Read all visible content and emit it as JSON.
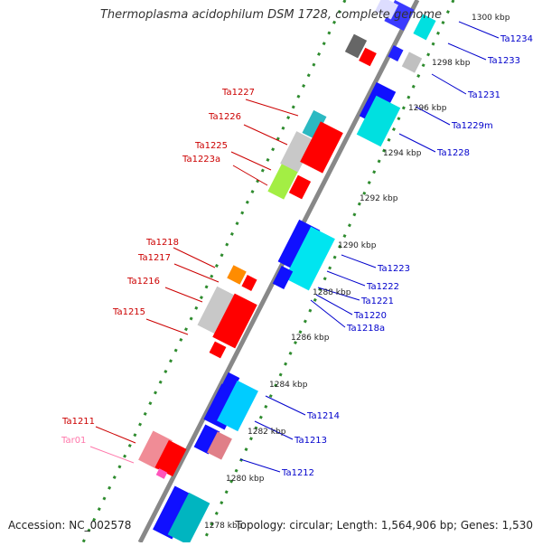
{
  "header": {
    "title": "Thermoplasma acidophilum DSM 1728, complete genome"
  },
  "footer": {
    "accession": "Accession: NC_002578",
    "summary": "Topology: circular; Length: 1,564,906 bp; Genes: 1,530"
  },
  "colors": {
    "backbone": "#808080",
    "tick": "#2e8b2e",
    "forward_label": "#cc0000",
    "reverse_label": "#0000cc",
    "rna_label": "#ff77aa"
  },
  "scale_labels": [
    "1300 kbp",
    "1298 kbp",
    "1296 kbp",
    "1294 kbp",
    "1292 kbp",
    "1290 kbp",
    "1288 kbp",
    "1286 kbp",
    "1284 kbp",
    "1282 kbp",
    "1280 kbp",
    "1278 kbp"
  ],
  "forward_genes": [
    "Ta1227",
    "Ta1226",
    "Ta1225",
    "Ta1223a",
    "Ta1218",
    "Ta1217",
    "Ta1216",
    "Ta1215",
    "Ta1211",
    "Tar01"
  ],
  "reverse_genes": [
    "Ta1234",
    "Ta1233",
    "Ta1231",
    "Ta1229m",
    "Ta1228",
    "Ta1223",
    "Ta1222",
    "Ta1221",
    "Ta1220",
    "Ta1218a",
    "Ta1214",
    "Ta1213",
    "Ta1212"
  ]
}
